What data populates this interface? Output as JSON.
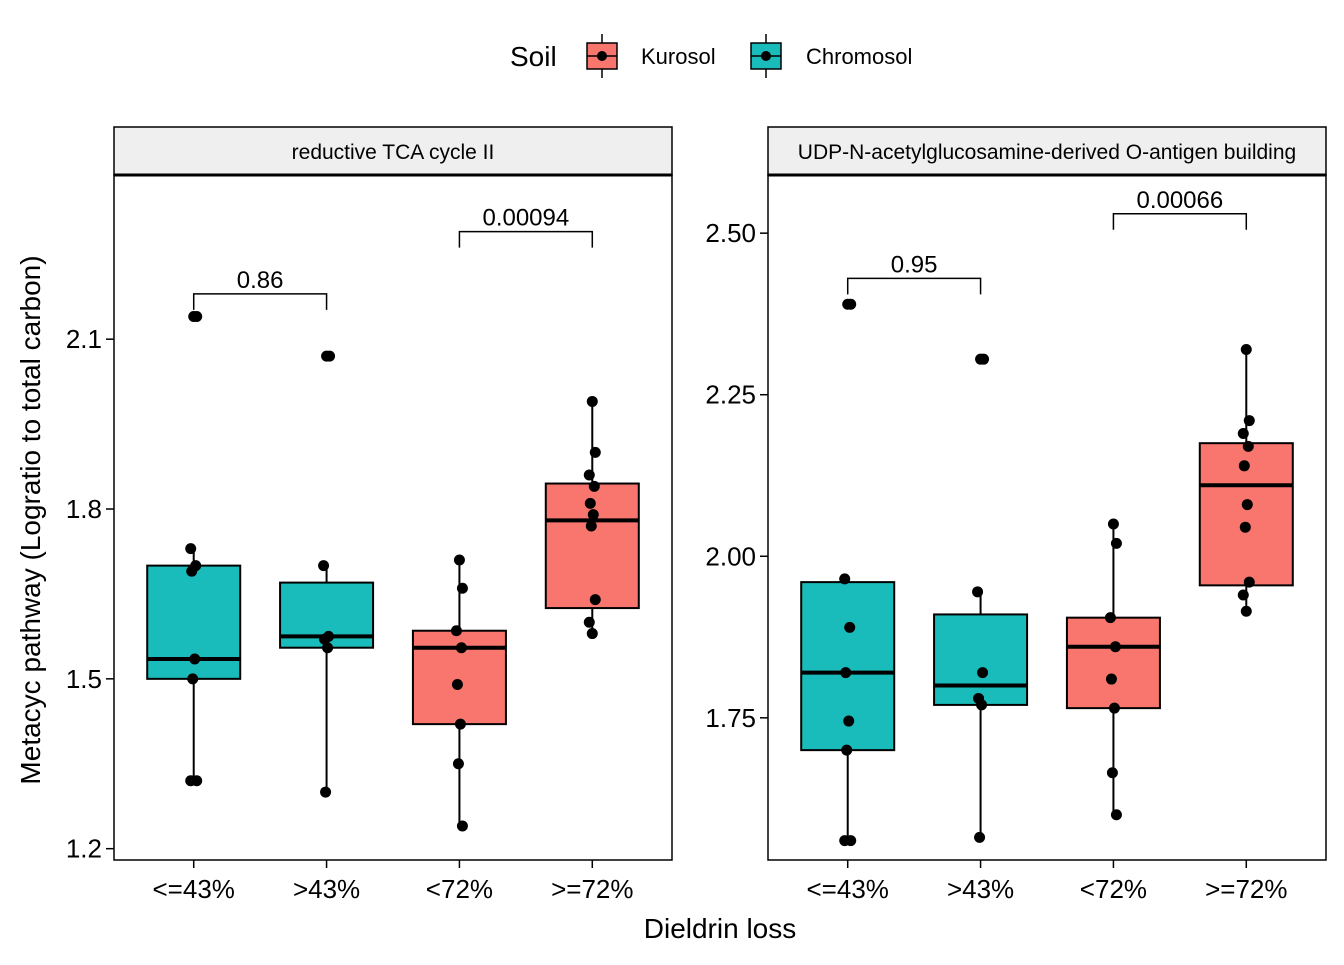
{
  "legend": {
    "title": "Soil",
    "items": [
      {
        "label": "Kurosol",
        "color": "#F8766D"
      },
      {
        "label": "Chromosol",
        "color": "#19BCBA"
      }
    ]
  },
  "x_title": "Dieldrin loss",
  "y_title": "Metacyc pathway (Logratio to total carbon)",
  "chart_data": [
    {
      "type": "box",
      "title": "reductive TCA cycle II",
      "categories": [
        "<=43%",
        ">43%",
        "<72%",
        ">=72%"
      ],
      "category_soil": [
        "Chromosol",
        "Chromosol",
        "Kurosol",
        "Kurosol"
      ],
      "ylim": [
        1.18,
        2.39
      ],
      "yticks": [
        1.2,
        1.5,
        1.8,
        2.1
      ],
      "ytick_labels": [
        "1.2",
        "1.5",
        "1.8",
        "2.1"
      ],
      "boxes": [
        {
          "category": "<=43%",
          "q1": 1.5,
          "median": 1.535,
          "q3": 1.7,
          "whisker_low": 1.32,
          "whisker_high": 1.73,
          "outliers": [
            2.14
          ]
        },
        {
          "category": ">43%",
          "q1": 1.555,
          "median": 1.575,
          "q3": 1.67,
          "whisker_low": 1.3,
          "whisker_high": 1.7,
          "outliers": [
            2.07
          ]
        },
        {
          "category": "<72%",
          "q1": 1.42,
          "median": 1.555,
          "q3": 1.585,
          "whisker_low": 1.24,
          "whisker_high": 1.71,
          "outliers": []
        },
        {
          "category": ">=72%",
          "q1": 1.625,
          "median": 1.78,
          "q3": 1.845,
          "whisker_low": 1.58,
          "whisker_high": 1.99,
          "outliers": []
        }
      ],
      "points": [
        {
          "category": "<=43%",
          "values": [
            2.14,
            2.14,
            1.73,
            1.7,
            1.69,
            1.535,
            1.5,
            1.32,
            1.32
          ]
        },
        {
          "category": ">43%",
          "values": [
            2.07,
            2.07,
            1.7,
            1.575,
            1.57,
            1.555,
            1.3
          ]
        },
        {
          "category": "<72%",
          "values": [
            1.71,
            1.66,
            1.585,
            1.555,
            1.49,
            1.42,
            1.35,
            1.24
          ]
        },
        {
          "category": ">=72%",
          "values": [
            1.99,
            1.9,
            1.86,
            1.84,
            1.81,
            1.79,
            1.77,
            1.64,
            1.6,
            1.58
          ]
        }
      ],
      "comparisons": [
        {
          "from": "<=43%",
          "to": ">43%",
          "label": "0.86",
          "y": 2.18
        },
        {
          "from": "<72%",
          "to": ">=72%",
          "label": "0.00094",
          "y": 2.29
        }
      ]
    },
    {
      "type": "box",
      "title": "UDP-N-acetylglucosamine-derived O-antigen building",
      "categories": [
        "<=43%",
        ">43%",
        "<72%",
        ">=72%"
      ],
      "category_soil": [
        "Chromosol",
        "Chromosol",
        "Kurosol",
        "Kurosol"
      ],
      "ylim": [
        1.53,
        2.59
      ],
      "yticks": [
        1.75,
        2.0,
        2.25,
        2.5
      ],
      "ytick_labels": [
        "1.75",
        "2.00",
        "2.25",
        "2.50"
      ],
      "boxes": [
        {
          "category": "<=43%",
          "q1": 1.7,
          "median": 1.82,
          "q3": 1.96,
          "whisker_low": 1.56,
          "whisker_high": 1.965,
          "outliers": [
            2.39
          ]
        },
        {
          "category": ">43%",
          "q1": 1.77,
          "median": 1.8,
          "q3": 1.91,
          "whisker_low": 1.565,
          "whisker_high": 1.945,
          "outliers": [
            2.305
          ]
        },
        {
          "category": "<72%",
          "q1": 1.765,
          "median": 1.86,
          "q3": 1.905,
          "whisker_low": 1.6,
          "whisker_high": 2.05,
          "outliers": []
        },
        {
          "category": ">=72%",
          "q1": 1.955,
          "median": 2.11,
          "q3": 2.175,
          "whisker_low": 1.915,
          "whisker_high": 2.32,
          "outliers": []
        }
      ],
      "points": [
        {
          "category": "<=43%",
          "values": [
            2.39,
            2.39,
            1.965,
            1.89,
            1.82,
            1.745,
            1.7,
            1.56,
            1.56
          ]
        },
        {
          "category": ">43%",
          "values": [
            2.305,
            2.305,
            1.945,
            1.82,
            1.78,
            1.77,
            1.565
          ]
        },
        {
          "category": "<72%",
          "values": [
            2.05,
            2.02,
            1.905,
            1.86,
            1.81,
            1.765,
            1.665,
            1.6
          ]
        },
        {
          "category": ">=72%",
          "values": [
            2.32,
            2.21,
            2.19,
            2.17,
            2.14,
            2.08,
            2.045,
            1.96,
            1.94,
            1.915
          ]
        }
      ],
      "comparisons": [
        {
          "from": "<=43%",
          "to": ">43%",
          "label": "0.95",
          "y": 2.43
        },
        {
          "from": "<72%",
          "to": ">=72%",
          "label": "0.00066",
          "y": 2.53
        }
      ]
    }
  ]
}
